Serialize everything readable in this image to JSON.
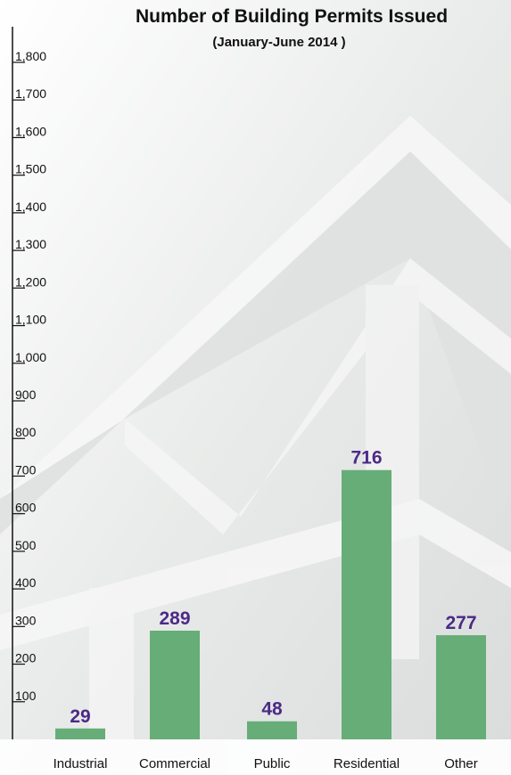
{
  "chart_data": {
    "type": "bar",
    "title": "Number of Building Permits Issued",
    "subtitle": "(January-June 2014 )",
    "categories": [
      "Industrial",
      "Commercial",
      "Public",
      "Residential",
      "Other"
    ],
    "values": [
      29,
      289,
      48,
      716,
      277
    ],
    "color": "#66ad78",
    "ylim": [
      0,
      1800
    ],
    "yticks": [
      100,
      200,
      300,
      400,
      500,
      600,
      700,
      800,
      900,
      {
        "value": 1000,
        "label": "1,000"
      },
      {
        "value": 1100,
        "label": "1,100"
      },
      {
        "value": 1200,
        "label": "1,200"
      },
      {
        "value": 1300,
        "label": "1,300"
      },
      {
        "value": 1400,
        "label": "1,400"
      },
      {
        "value": 1500,
        "label": "1,500"
      },
      {
        "value": 1600,
        "label": "1,600"
      },
      {
        "value": 1700,
        "label": "1,700"
      },
      {
        "value": 1800,
        "label": "1,800"
      }
    ]
  }
}
